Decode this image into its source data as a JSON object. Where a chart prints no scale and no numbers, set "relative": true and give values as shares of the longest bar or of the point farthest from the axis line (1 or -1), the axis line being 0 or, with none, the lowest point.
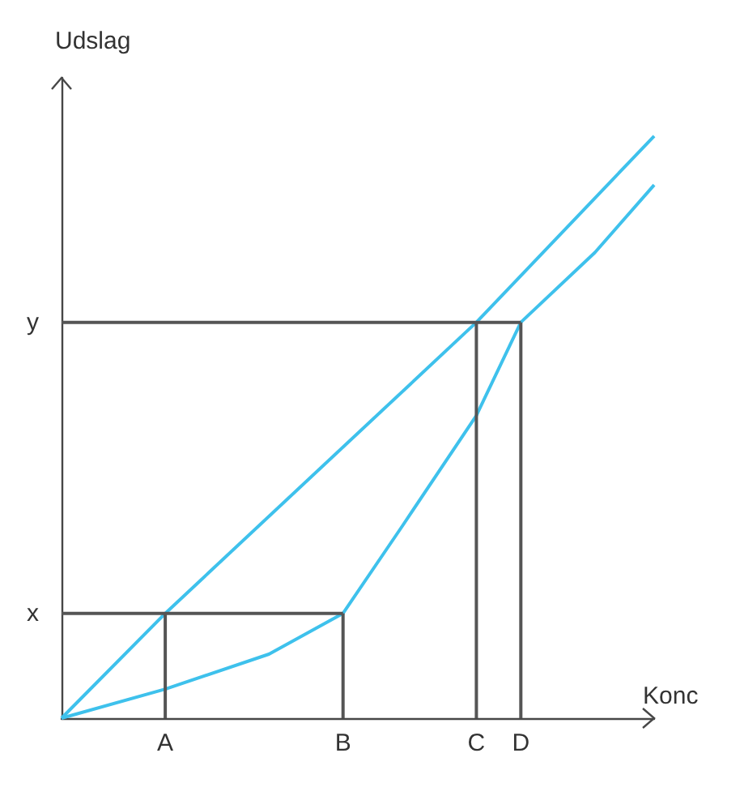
{
  "chart_data": {
    "type": "line",
    "xlabel": "Konc",
    "ylabel": "Udslag",
    "relative": true,
    "categories": [
      null,
      null,
      null,
      null,
      null,
      null,
      null,
      "A",
      null,
      null,
      null,
      null,
      null,
      null,
      null,
      null,
      null,
      null,
      null,
      "B",
      null,
      null,
      null,
      null,
      null,
      null,
      null,
      null,
      "C",
      null,
      null,
      "D",
      null,
      null,
      null,
      null,
      null,
      null,
      null,
      null,
      null
    ],
    "grid": false,
    "marker": "none",
    "line_style": "solid",
    "series": [
      {
        "color": "#3ec1ec",
        "values": [
          0,
          null,
          null,
          null,
          null,
          null,
          null,
          0.18,
          null,
          null,
          null,
          null,
          null,
          null,
          null,
          null,
          null,
          null,
          null,
          null,
          null,
          null,
          null,
          null,
          null,
          null,
          null,
          null,
          0.68,
          null,
          null,
          null,
          null,
          null,
          null,
          null,
          null,
          null,
          null,
          null,
          1
        ]
      },
      {
        "color": "#3ec1ec",
        "values": [
          0,
          null,
          null,
          null,
          null,
          null,
          null,
          0.05,
          null,
          null,
          null,
          null,
          null,
          null,
          0.11,
          null,
          null,
          null,
          null,
          0.18,
          null,
          null,
          null,
          0.33,
          null,
          null,
          null,
          null,
          0.52,
          null,
          null,
          0.68,
          null,
          null,
          null,
          null,
          0.8,
          null,
          null,
          null,
          0.916
        ]
      },
      {
        "name": "x",
        "color": "#555555",
        "values": [
          0.18,
          null,
          null,
          null,
          null,
          null,
          null,
          null,
          null,
          null,
          null,
          null,
          null,
          null,
          null,
          null,
          null,
          null,
          null,
          0.18,
          null,
          null,
          null,
          null,
          null,
          null,
          null,
          null,
          null,
          null,
          null,
          null,
          null,
          null,
          null,
          null,
          null,
          null,
          null,
          null,
          null
        ]
      },
      {
        "name": "y",
        "color": "#555555",
        "values": [
          0.68,
          null,
          null,
          null,
          null,
          null,
          null,
          null,
          null,
          null,
          null,
          null,
          null,
          null,
          null,
          null,
          null,
          null,
          null,
          null,
          null,
          null,
          null,
          null,
          null,
          null,
          null,
          null,
          null,
          null,
          null,
          0.68,
          null,
          null,
          null,
          null,
          null,
          null,
          null,
          null,
          null
        ]
      },
      {
        "color": "#555555",
        "x": [
          "A",
          "A"
        ],
        "values": [
          0,
          0.18
        ]
      },
      {
        "color": "#555555",
        "x": [
          "B",
          "B"
        ],
        "values": [
          0,
          0.18
        ]
      },
      {
        "color": "#555555",
        "x": [
          "C",
          "C"
        ],
        "values": [
          0,
          0.68
        ]
      },
      {
        "color": "#555555",
        "x": [
          "D",
          "D"
        ],
        "values": [
          0,
          0.68
        ]
      }
    ]
  }
}
